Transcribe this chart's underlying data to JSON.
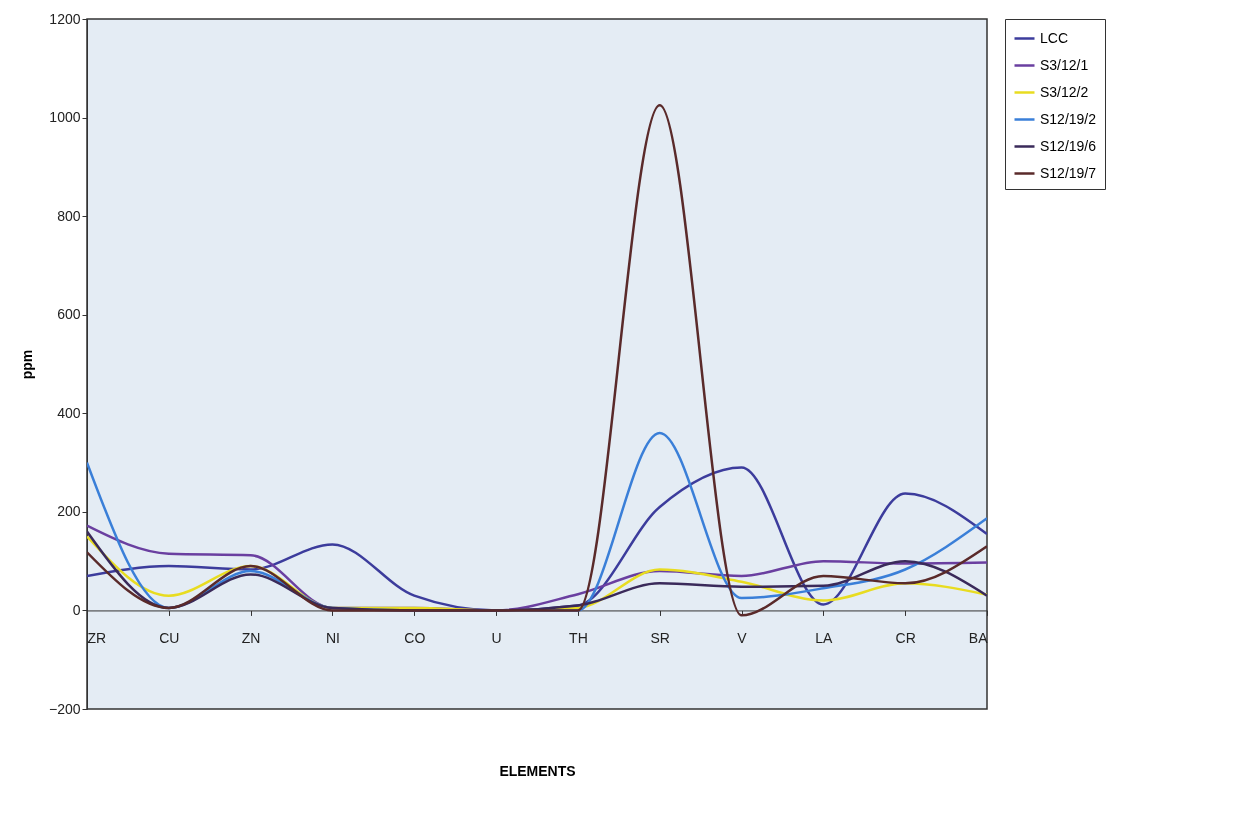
{
  "chart_data": {
    "type": "line",
    "xlabel": "ELEMENTS",
    "ylabel": "ppm",
    "categories": [
      "ZR",
      "CU",
      "ZN",
      "NI",
      "CO",
      "U",
      "TH",
      "SR",
      "V",
      "LA",
      "CR",
      "BA"
    ],
    "ylim": [
      -200,
      1200
    ],
    "yticks": [
      -200,
      0,
      200,
      400,
      600,
      800,
      1000,
      1200
    ],
    "grid": false,
    "legend": "right",
    "line_style": "solid",
    "marker": "none",
    "series": [
      {
        "name": "LCC",
        "color": "#3c3c9c",
        "values": [
          70,
          90,
          83,
          134,
          30,
          0,
          10,
          210,
          290,
          12,
          237,
          155
        ]
      },
      {
        "name": "S3/12/1",
        "color": "#6a3fa0",
        "values": [
          172,
          115,
          112,
          5,
          5,
          0,
          33,
          80,
          70,
          100,
          95,
          97
        ]
      },
      {
        "name": "S3/12/2",
        "color": "#e8dc20",
        "values": [
          150,
          30,
          90,
          5,
          5,
          0,
          5,
          83,
          58,
          20,
          55,
          32
        ]
      },
      {
        "name": "S12/19/2",
        "color": "#3a7fd8",
        "values": [
          300,
          5,
          80,
          5,
          0,
          0,
          0,
          360,
          25,
          45,
          83,
          187
        ]
      },
      {
        "name": "S12/19/6",
        "color": "#3a2a5a",
        "values": [
          160,
          5,
          73,
          5,
          0,
          0,
          10,
          55,
          48,
          50,
          100,
          30
        ]
      },
      {
        "name": "S12/19/7",
        "color": "#5a2a2a",
        "values": [
          118,
          5,
          90,
          0,
          0,
          0,
          0,
          1025,
          -10,
          70,
          55,
          130
        ]
      }
    ]
  }
}
